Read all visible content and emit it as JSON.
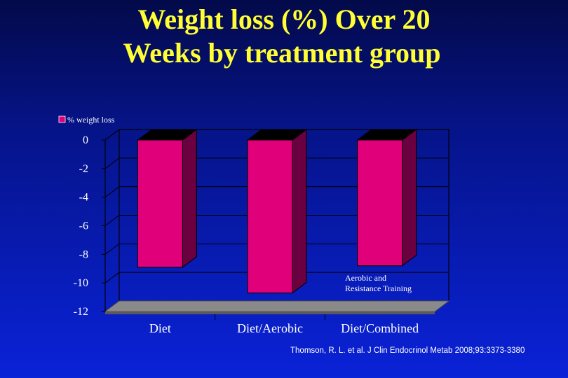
{
  "title_line1": "Weight loss (%) Over 20",
  "title_line2": "Weeks by treatment group",
  "citation": "Thomson, R. L. et al. J Clin Endocrinol Metab 2008;93:3373-3380",
  "colors": {
    "background_top": "#030a4a",
    "background_bottom": "#0a22d8",
    "title": "#ffff33",
    "bar_front": "#e0007a",
    "bar_side": "#6a0040",
    "bar_top": "#000000",
    "floor": "#8a8a8a"
  },
  "chart_data": {
    "type": "bar",
    "categories": [
      "Diet",
      "Diet/Aerobic",
      "Diet/Combined"
    ],
    "series": [
      {
        "name": "% weight loss",
        "values": [
          -8.9,
          -10.7,
          -8.8
        ]
      }
    ],
    "ylim": [
      -12,
      0
    ],
    "yticks": [
      0,
      -2,
      -4,
      -6,
      -8,
      -10,
      -12
    ],
    "legend_position": "top-left",
    "grid": true,
    "annotations": [
      {
        "text_line1": "Aerobic and",
        "text_line2": "Resistance Training",
        "category": "Diet/Combined"
      }
    ]
  }
}
